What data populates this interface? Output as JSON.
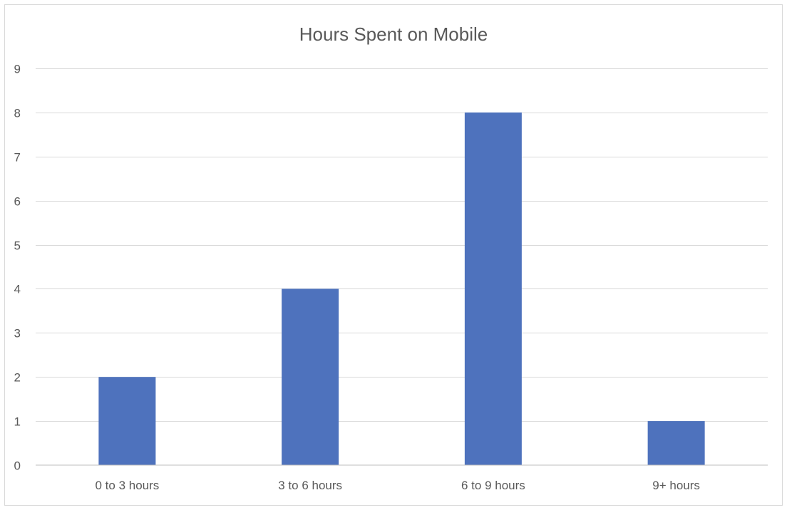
{
  "chart_data": {
    "type": "bar",
    "title": "Hours Spent on Mobile",
    "xlabel": "",
    "ylabel": "",
    "categories": [
      "0 to 3 hours",
      "3 to 6 hours",
      "6 to 9 hours",
      "9+ hours"
    ],
    "values": [
      2,
      4,
      8,
      1
    ],
    "ylim": [
      0,
      9
    ],
    "yticks": [
      "0",
      "1",
      "2",
      "3",
      "4",
      "5",
      "6",
      "7",
      "8",
      "9"
    ],
    "grid": true,
    "legend": "none",
    "bar_color": "#4e72bd"
  }
}
